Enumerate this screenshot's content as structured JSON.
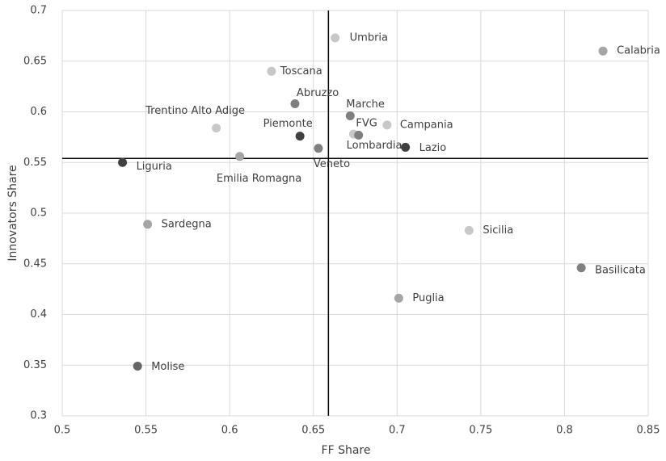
{
  "chart_data": {
    "type": "scatter",
    "x_label": "FF Share",
    "y_label": "Innovators Share",
    "labels": [
      "Umbria",
      "Calabria",
      "Toscana",
      "Abruzzo",
      "Trentino Alto Adige",
      "Marche",
      "Campania",
      "Piemonte",
      "FVG",
      "Lombardia",
      "Lazio",
      "Veneto",
      "Emilia Romagna",
      "Liguria",
      "Sardegna",
      "Sicilia",
      "Basilicata",
      "Puglia",
      "Molise"
    ],
    "x": [
      0.663,
      0.823,
      0.625,
      0.639,
      0.592,
      0.672,
      0.694,
      0.642,
      0.674,
      0.677,
      0.705,
      0.653,
      0.606,
      0.536,
      0.551,
      0.743,
      0.81,
      0.701,
      0.545
    ],
    "y": [
      0.673,
      0.66,
      0.64,
      0.608,
      0.584,
      0.596,
      0.587,
      0.576,
      0.578,
      0.577,
      0.565,
      0.564,
      0.556,
      0.55,
      0.489,
      0.483,
      0.446,
      0.416,
      0.349
    ],
    "colors": [
      "#c8c8c8",
      "#a6a6a6",
      "#c8c8c8",
      "#808080",
      "#c8c8c8",
      "#808080",
      "#c8c8c8",
      "#404040",
      "#c8c8c8",
      "#808080",
      "#404040",
      "#808080",
      "#a6a6a6",
      "#404040",
      "#a6a6a6",
      "#c8c8c8",
      "#808080",
      "#a6a6a6",
      "#666666"
    ],
    "xlim": [
      0.5,
      0.85
    ],
    "ylim": [
      0.3,
      0.7
    ],
    "xticks": [
      0.5,
      0.55,
      0.6,
      0.65,
      0.7,
      0.75,
      0.8,
      0.85
    ],
    "yticks": [
      0.3,
      0.35,
      0.4,
      0.45,
      0.5,
      0.55,
      0.6,
      0.65,
      0.7
    ],
    "grid": true,
    "reference_x": 0.659,
    "reference_y": 0.554
  }
}
